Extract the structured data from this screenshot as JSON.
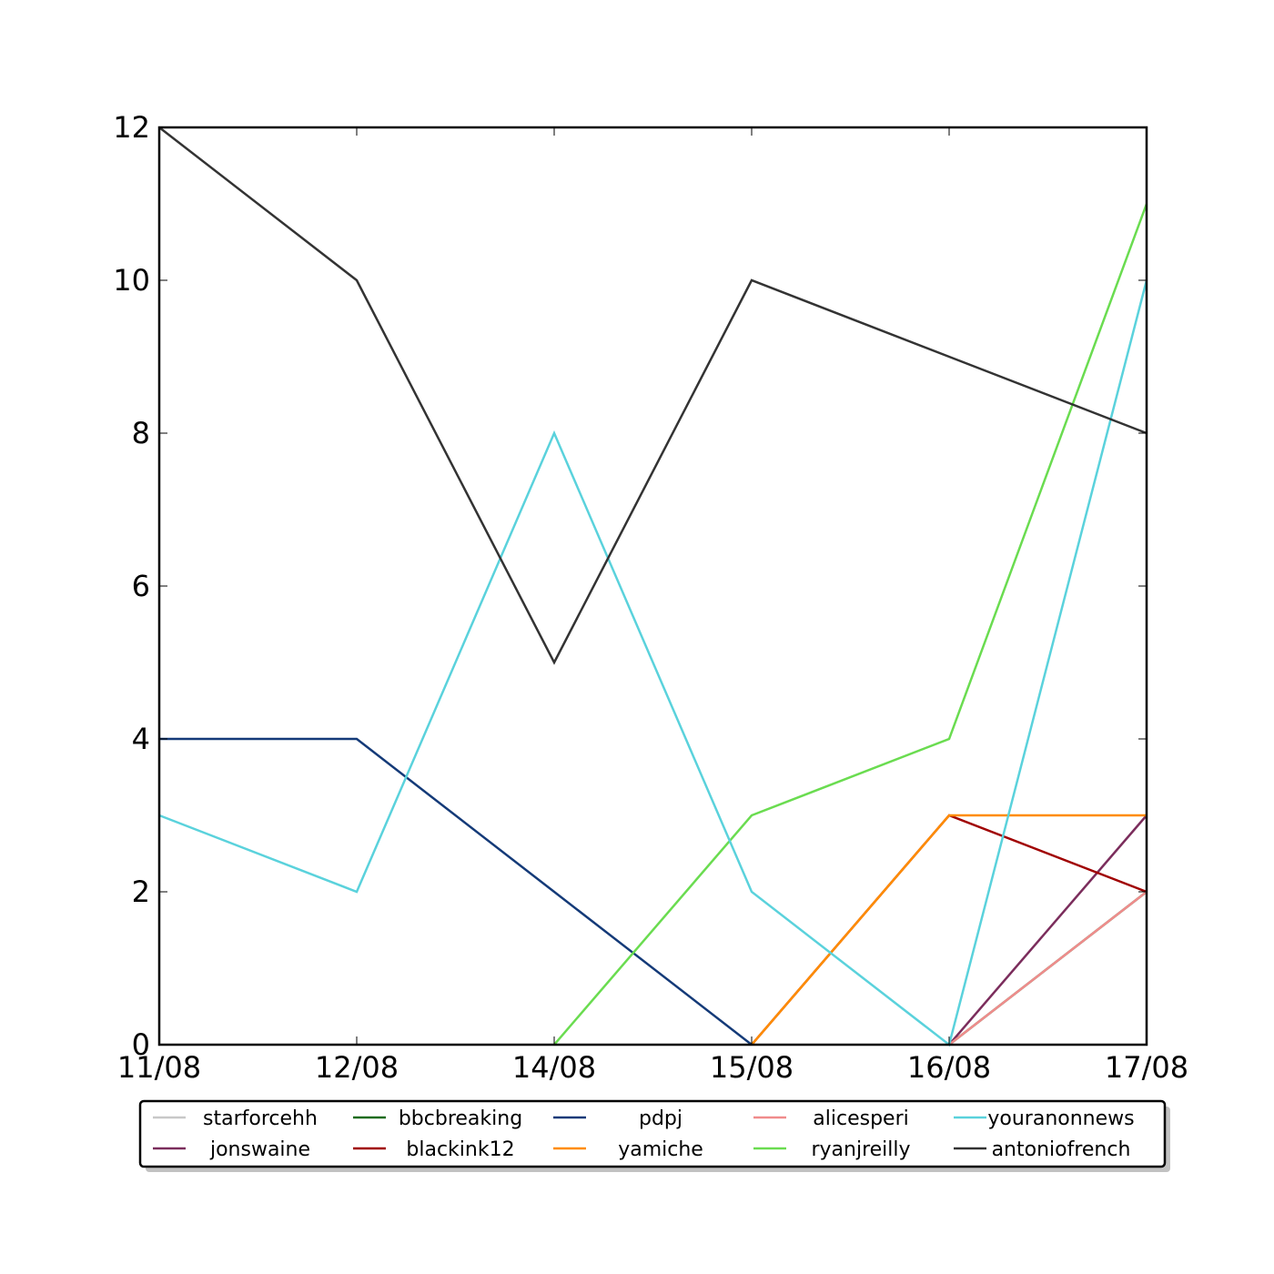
{
  "chart_data": {
    "type": "line",
    "title": "",
    "xlabel": "",
    "ylabel": "",
    "x": [
      "11/08",
      "12/08",
      "14/08",
      "15/08",
      "16/08",
      "17/08"
    ],
    "ylim": [
      0,
      12
    ],
    "yticks": [
      "0",
      "2",
      "4",
      "6",
      "8",
      "10",
      "12"
    ],
    "grid": false,
    "legend_position": "bottom",
    "series": [
      {
        "name": "starforcehh",
        "color": "#c8c8c8",
        "values": [
          null,
          null,
          null,
          null,
          0,
          2
        ]
      },
      {
        "name": "jonswaine",
        "color": "#7b2d5c",
        "values": [
          null,
          null,
          null,
          null,
          0,
          3
        ]
      },
      {
        "name": "bbcbreaking",
        "color": "#1e6b1e",
        "values": [
          null,
          null,
          null,
          null,
          0,
          2
        ]
      },
      {
        "name": "blackink12",
        "color": "#a00000",
        "values": [
          null,
          null,
          null,
          0,
          3,
          2
        ]
      },
      {
        "name": "pdpj",
        "color": "#143a78",
        "values": [
          4,
          4,
          2,
          0,
          null,
          null
        ]
      },
      {
        "name": "yamiche",
        "color": "#ff8c00",
        "values": [
          null,
          null,
          null,
          0,
          3,
          3
        ]
      },
      {
        "name": "alicesperi",
        "color": "#f08c8c",
        "values": [
          null,
          null,
          null,
          null,
          0,
          2
        ]
      },
      {
        "name": "ryanjreilly",
        "color": "#6adc50",
        "values": [
          null,
          null,
          0,
          3,
          4,
          11
        ]
      },
      {
        "name": "youranonnews",
        "color": "#5ad2dc",
        "values": [
          3,
          2,
          8,
          2,
          0,
          10
        ]
      },
      {
        "name": "antoniofrench",
        "color": "#333333",
        "values": [
          12,
          10,
          5,
          10,
          9,
          8
        ]
      }
    ]
  }
}
